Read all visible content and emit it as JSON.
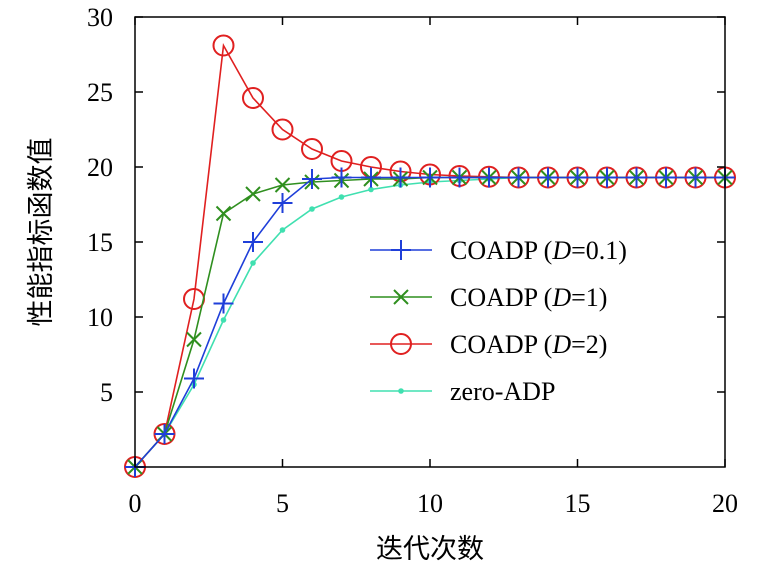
{
  "chart_data": {
    "type": "line",
    "title": "",
    "xlabel": "迭代次数",
    "ylabel": "性能指标函数值",
    "xlim": [
      0,
      20
    ],
    "ylim": [
      0,
      30
    ],
    "x_ticks": [
      "0",
      "5",
      "10",
      "15",
      "20"
    ],
    "y_ticks": [
      "5",
      "10",
      "15",
      "20",
      "25",
      "30"
    ],
    "legend_position": "center-right",
    "x": [
      0,
      1,
      2,
      3,
      4,
      5,
      6,
      7,
      8,
      9,
      10,
      11,
      12,
      13,
      14,
      15,
      16,
      17,
      18,
      19,
      20
    ],
    "series": [
      {
        "name": "COADP (D=0.1)",
        "legend_parts": [
          "COADP (",
          "D",
          "=0.1)"
        ],
        "color": "#1f3fd9",
        "marker": "plus",
        "values": [
          0,
          2.2,
          5.9,
          10.9,
          15.0,
          17.6,
          19.2,
          19.3,
          19.3,
          19.3,
          19.3,
          19.3,
          19.3,
          19.3,
          19.3,
          19.3,
          19.3,
          19.3,
          19.3,
          19.3,
          19.3
        ]
      },
      {
        "name": "COADP (D=1)",
        "legend_parts": [
          "COADP (",
          "D",
          "=1)"
        ],
        "color": "#2f8f1f",
        "marker": "x",
        "values": [
          0,
          2.2,
          8.5,
          16.9,
          18.2,
          18.8,
          19.0,
          19.1,
          19.2,
          19.2,
          19.3,
          19.3,
          19.3,
          19.3,
          19.3,
          19.3,
          19.3,
          19.3,
          19.3,
          19.3,
          19.3
        ]
      },
      {
        "name": "COADP (D=2)",
        "legend_parts": [
          "COADP (",
          "D",
          "=2)"
        ],
        "color": "#e02020",
        "marker": "circle",
        "values": [
          0,
          2.2,
          11.2,
          28.1,
          24.6,
          22.5,
          21.2,
          20.4,
          20.0,
          19.7,
          19.5,
          19.4,
          19.35,
          19.3,
          19.3,
          19.3,
          19.3,
          19.3,
          19.3,
          19.3,
          19.3
        ]
      },
      {
        "name": "zero-ADP",
        "legend_parts": [
          "zero-ADP",
          "",
          ""
        ],
        "color": "#40e0b0",
        "marker": "dot",
        "values": [
          0,
          2.2,
          5.5,
          9.8,
          13.6,
          15.8,
          17.2,
          18.0,
          18.5,
          18.8,
          19.0,
          19.1,
          19.2,
          19.3,
          19.3,
          19.3,
          19.3,
          19.3,
          19.3,
          19.3,
          19.3
        ]
      }
    ]
  }
}
